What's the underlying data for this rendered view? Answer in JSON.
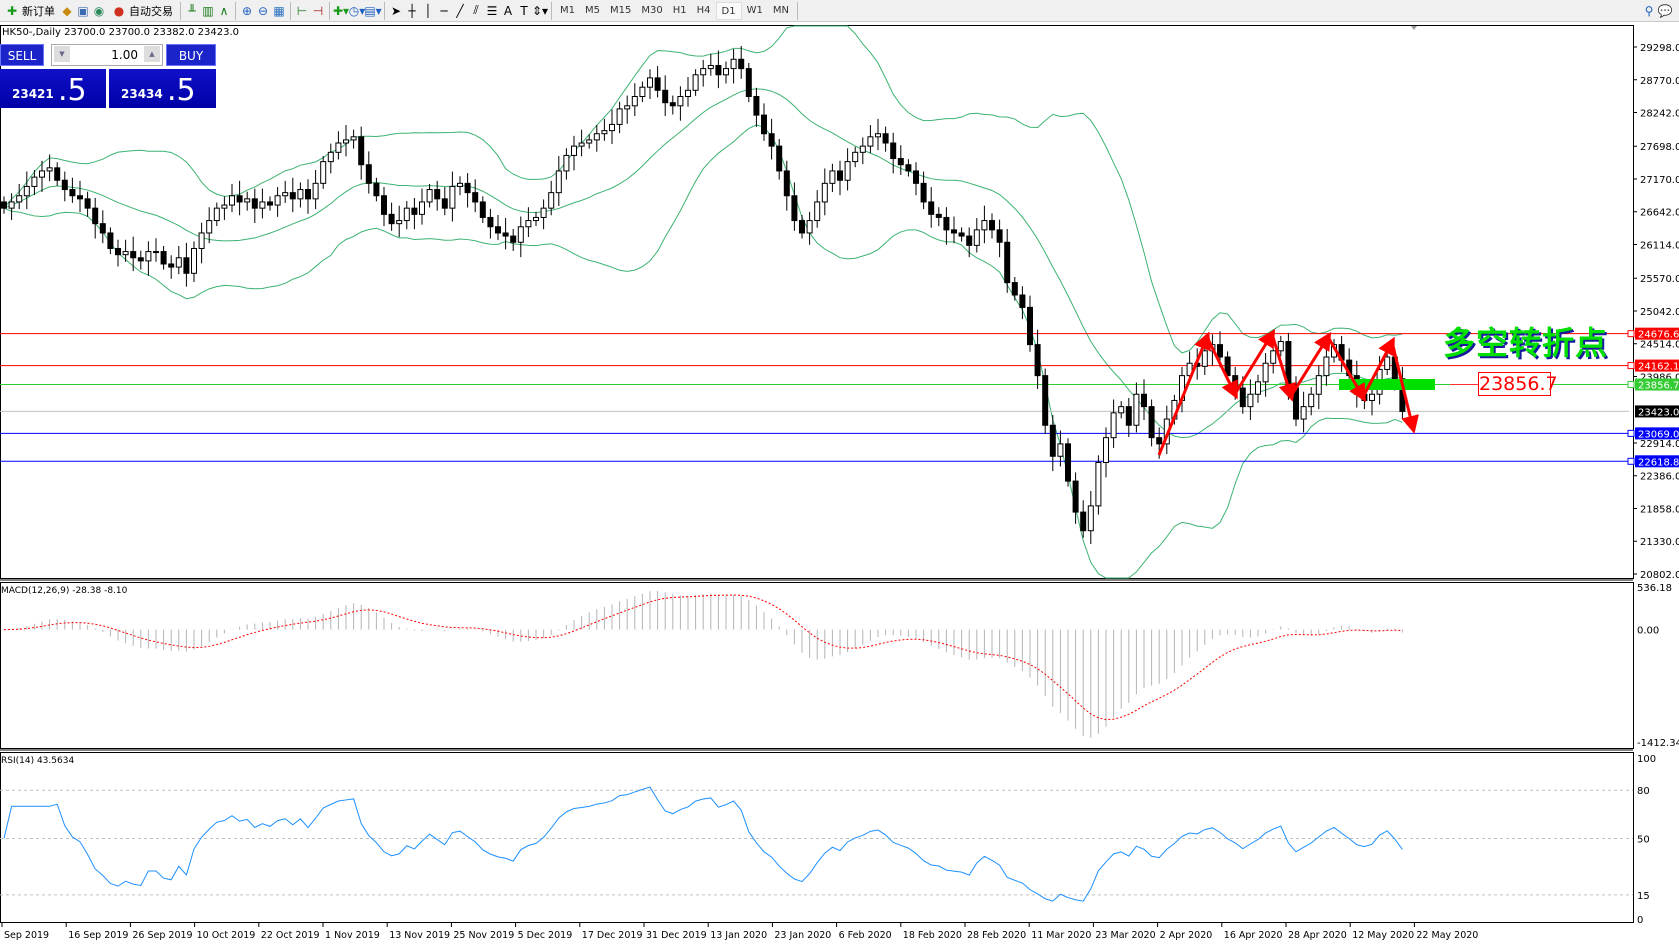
{
  "toolbar": {
    "new_order": "新订单",
    "auto_trading": "自动交易",
    "icons": [
      "new-order-icon",
      "experts-icon",
      "market-watch-icon",
      "signal-icon",
      "auto-trading-icon",
      "bar-chart-icon",
      "candle-chart-icon",
      "line-chart-icon",
      "zoom-in-icon",
      "zoom-out-icon",
      "tile-windows-icon",
      "autoscroll-icon",
      "chart-shift-icon",
      "indicators-icon",
      "periods-icon",
      "templates-icon",
      "cursor-icon",
      "crosshair-icon",
      "vertical-line-icon",
      "horizontal-line-icon",
      "trendline-icon",
      "fibonacci-icon",
      "equidistant-channel-icon",
      "text-icon",
      "text-label-icon",
      "arrows-icon"
    ],
    "text_tool": "A",
    "timeframes": [
      "M1",
      "M5",
      "M15",
      "M30",
      "H1",
      "H4",
      "D1",
      "W1",
      "MN"
    ],
    "selected_timeframe": "D1"
  },
  "symbol_header": "HK50-,Daily  23700.0 23700.0 23382.0 23423.0",
  "trade_panel": {
    "sell_label": "SELL",
    "buy_label": "BUY",
    "lot": "1.00",
    "sell_price_small": "23421",
    "sell_price_large": ".5",
    "buy_price_small": "23434",
    "buy_price_large": ".5",
    "color": "#1010c8"
  },
  "price_axis": [
    "29298.0",
    "28770.0",
    "28242.0",
    "27698.0",
    "27170.0",
    "26642.0",
    "26114.0",
    "25570.0",
    "25042.0",
    "24514.0",
    "23986.0",
    "22914.0",
    "22386.0",
    "21858.0",
    "21330.0",
    "20802.0"
  ],
  "hlines": [
    {
      "price": 24676.6,
      "label": "24676.6",
      "color": "#ff0000"
    },
    {
      "price": 24162.1,
      "label": "24162.1",
      "color": "#ff0000"
    },
    {
      "price": 23856.7,
      "label": "23856.7",
      "color": "#33cc33"
    },
    {
      "price": 23423.0,
      "label": "23423.0",
      "color": "#000000"
    },
    {
      "price": 23069.0,
      "label": "23069.0",
      "color": "#0000ff"
    },
    {
      "price": 22618.8,
      "label": "22618.8",
      "color": "#0000ff"
    }
  ],
  "annotation": {
    "text": "多空转折点",
    "price_label": "23856.7",
    "text_color": "#00e000"
  },
  "macd": {
    "label": "MACD(12,26,9) -28.38 -8.10",
    "axis": [
      "536.18",
      "0.00",
      "-1412.34"
    ]
  },
  "rsi": {
    "label": "RSI(14) 43.5634",
    "axis": [
      "100",
      "80",
      "50",
      "15",
      "0"
    ],
    "color": "#1e90ff"
  },
  "dates": [
    "Sep 2019",
    "16 Sep 2019",
    "26 Sep 2019",
    "10 Oct 2019",
    "22 Oct 2019",
    "1 Nov 2019",
    "13 Nov 2019",
    "25 Nov 2019",
    "5 Dec 2019",
    "17 Dec 2019",
    "31 Dec 2019",
    "13 Jan 2020",
    "23 Jan 2020",
    "6 Feb 2020",
    "18 Feb 2020",
    "28 Feb 2020",
    "11 Mar 2020",
    "23 Mar 2020",
    "2 Apr 2020",
    "16 Apr 2020",
    "28 Apr 2020",
    "12 May 2020",
    "22 May 2020"
  ],
  "chart_data": {
    "type": "candlestick",
    "ylim": [
      20802,
      29298
    ],
    "bollinger_color": "#3cb371",
    "close": [
      26700,
      26800,
      26900,
      27050,
      27200,
      27300,
      27350,
      27150,
      27000,
      26900,
      26850,
      26700,
      26450,
      26300,
      26050,
      25950,
      26000,
      25900,
      25850,
      26000,
      26000,
      25800,
      25750,
      25900,
      25650,
      26050,
      26300,
      26500,
      26700,
      26750,
      26900,
      26800,
      26850,
      26700,
      26800,
      26750,
      26900,
      26950,
      26850,
      27000,
      26850,
      27100,
      27450,
      27600,
      27750,
      27800,
      27850,
      27400,
      27100,
      26900,
      26600,
      26450,
      26500,
      26700,
      26600,
      26800,
      27000,
      26850,
      26700,
      27050,
      27100,
      26950,
      26800,
      26550,
      26400,
      26300,
      26250,
      26150,
      26400,
      26500,
      26550,
      26700,
      26950,
      27300,
      27550,
      27700,
      27750,
      27800,
      27900,
      27950,
      28050,
      28300,
      28350,
      28500,
      28650,
      28800,
      28600,
      28400,
      28350,
      28500,
      28600,
      28850,
      28950,
      29000,
      28850,
      28950,
      29100,
      28950,
      28500,
      28200,
      27900,
      27700,
      27300,
      26900,
      26500,
      26300,
      26500,
      26800,
      27100,
      27300,
      27150,
      27450,
      27600,
      27700,
      27850,
      27900,
      27750,
      27500,
      27400,
      27300,
      27100,
      26800,
      26600,
      26550,
      26350,
      26300,
      26250,
      26100,
      26350,
      26500,
      26350,
      26150,
      25500,
      25300,
      25100,
      24500,
      24000,
      23200,
      22700,
      22900,
      22300,
      21800,
      21500,
      21900,
      22600,
      23000,
      23400,
      23500,
      23200,
      23700,
      23500,
      23000,
      22900,
      23300,
      23600,
      24000,
      24200,
      24150,
      24400,
      24500,
      24300,
      24000,
      23800,
      23500,
      23700,
      23900,
      24200,
      24400,
      24550,
      23800,
      23300,
      23500,
      23700,
      24000,
      24300,
      24500,
      24250,
      24000,
      23700,
      23600,
      23700,
      24100,
      24300,
      23950,
      23423
    ]
  }
}
